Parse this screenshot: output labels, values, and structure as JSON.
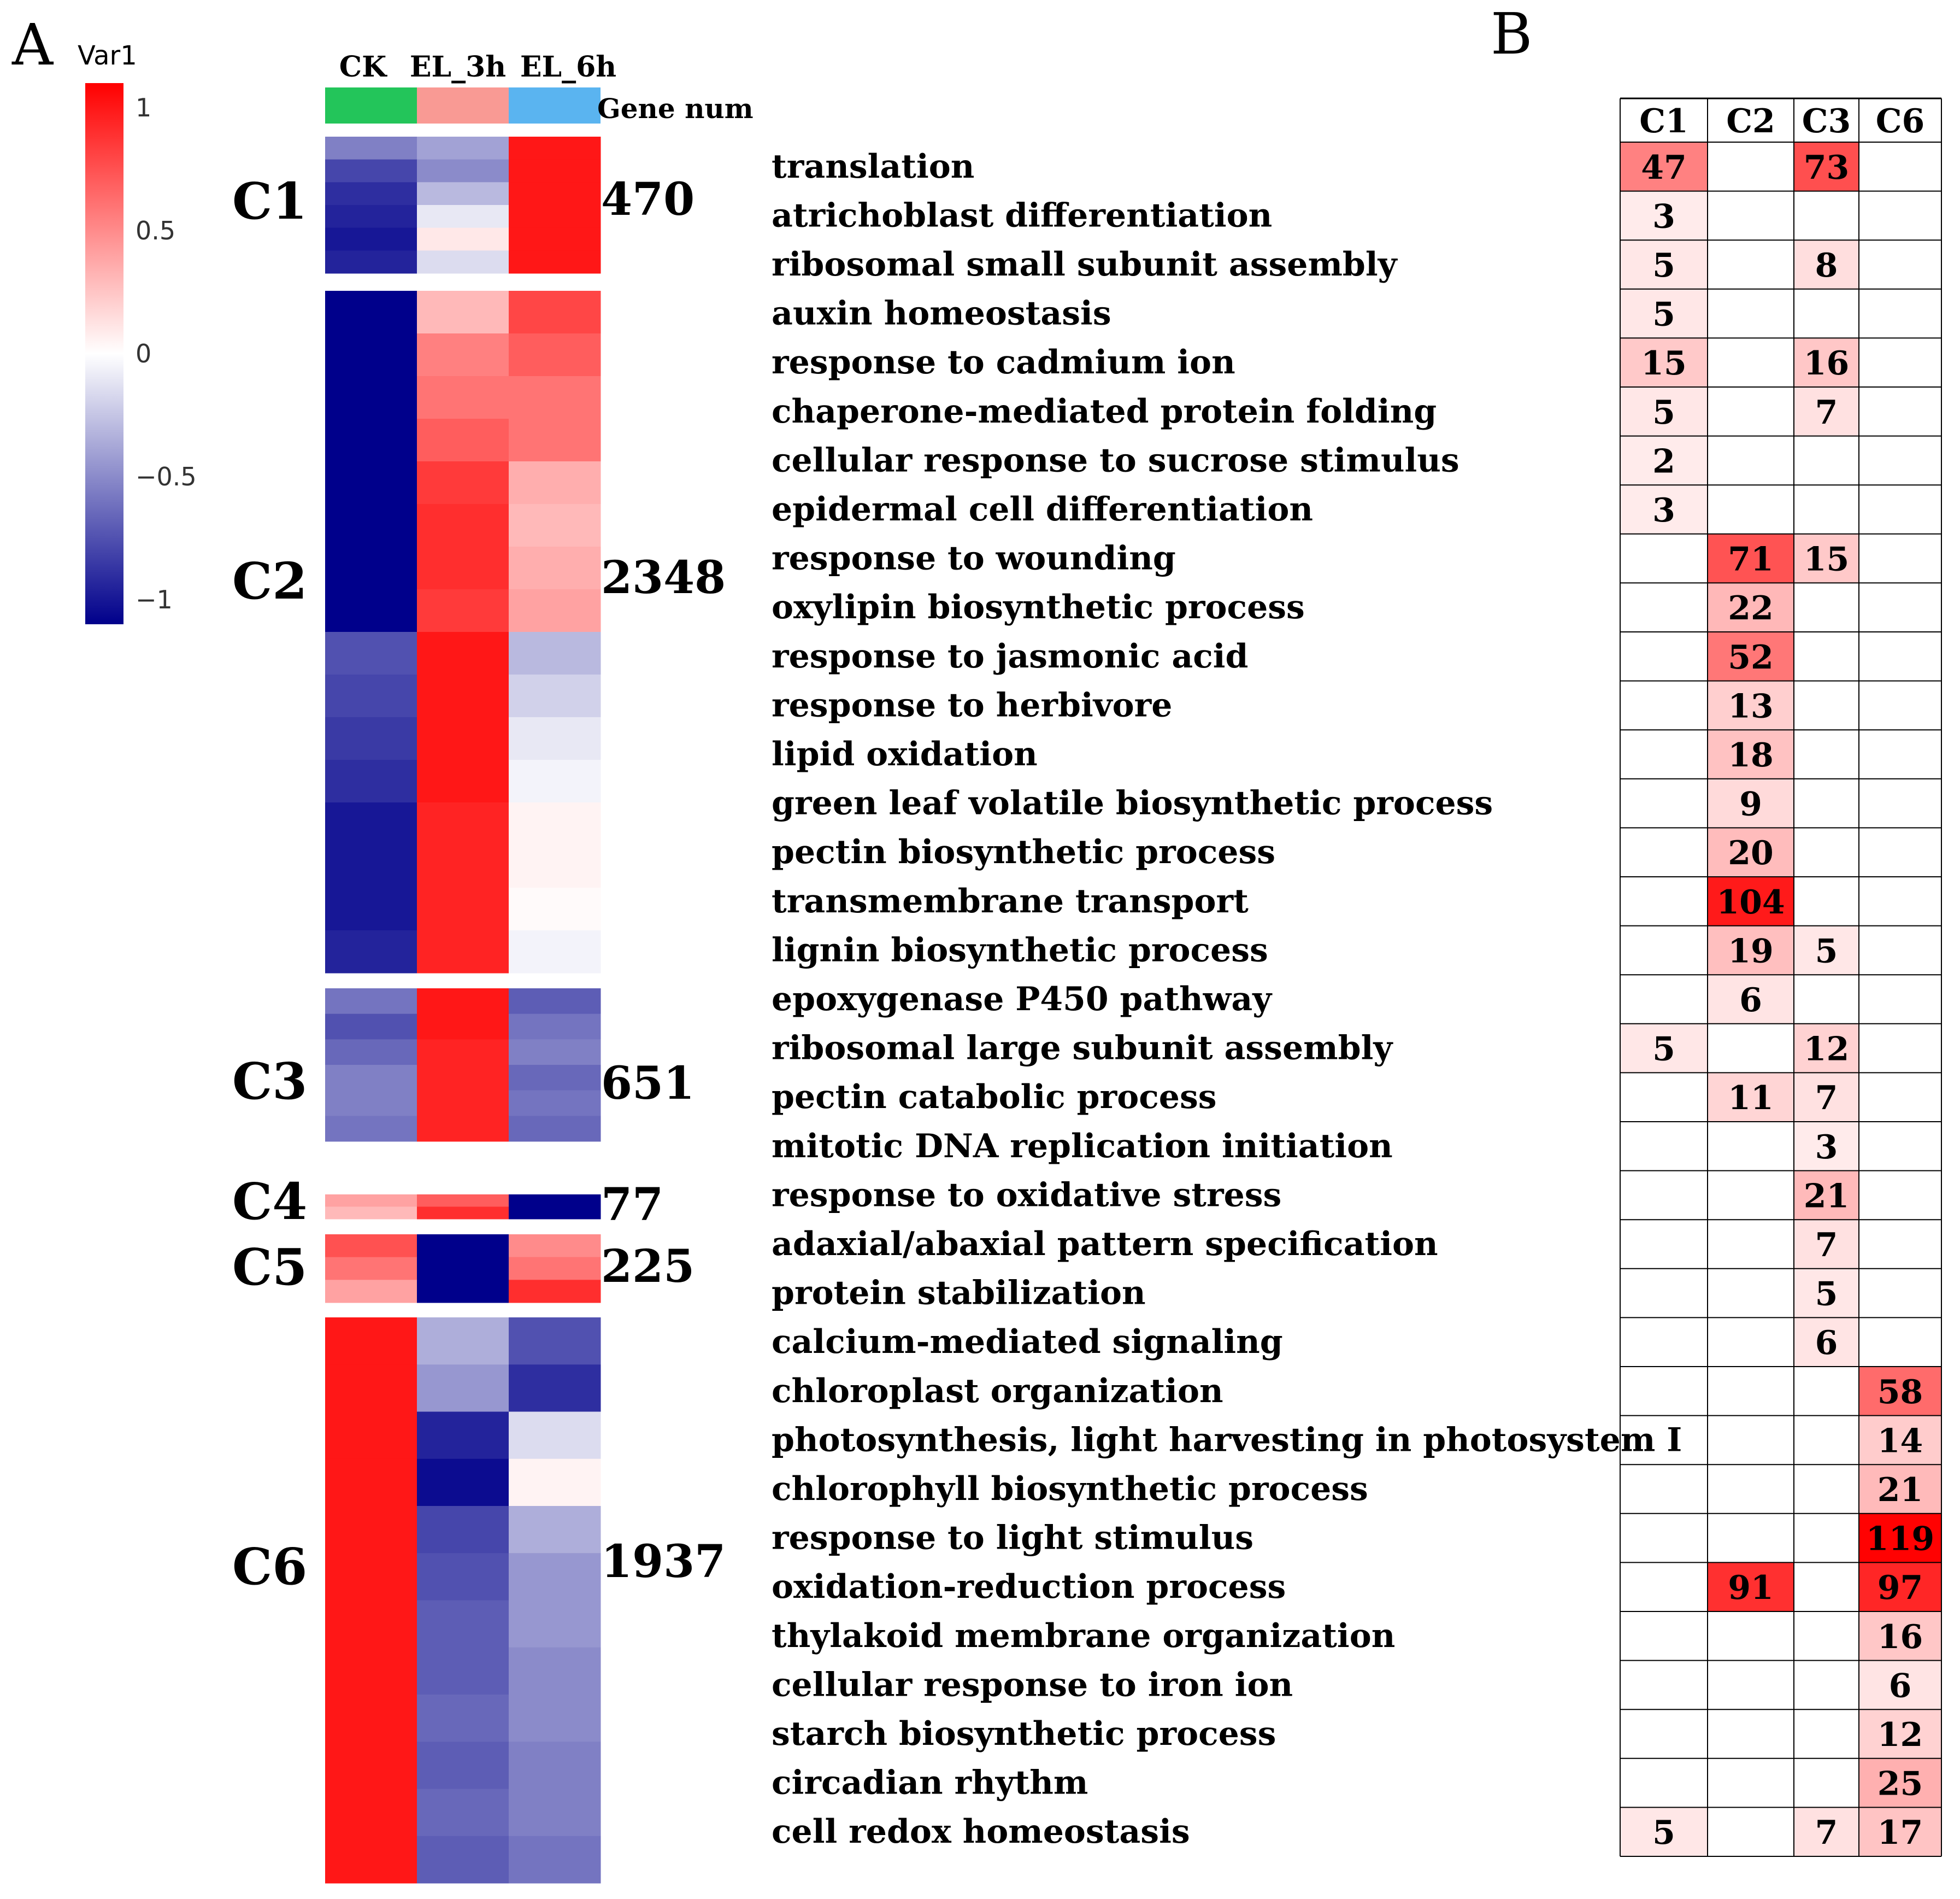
{
  "colors": {
    "max_red": "#ff0000",
    "mid_white": "#ffffff",
    "min_blue": "#00008b",
    "ck_bar": "#23c55a",
    "el3h_bar": "#f99a94",
    "el6h_bar": "#5ab4f0",
    "grid": "#000000"
  },
  "panel_a": {
    "label": "A",
    "legend": {
      "title": "Var1",
      "ticks": [
        {
          "value": 1,
          "label": "1"
        },
        {
          "value": 0.5,
          "label": "0.5"
        },
        {
          "value": 0,
          "label": "0"
        },
        {
          "value": -0.5,
          "label": "−0.5"
        },
        {
          "value": -1,
          "label": "−1"
        }
      ],
      "range": [
        -1.1,
        1.1
      ]
    },
    "columns": [
      "CK",
      "EL_3h",
      "EL_6h"
    ],
    "gene_num_header": "Gene num"
  },
  "panel_b": {
    "label": "B",
    "col_headers": [
      "C1",
      "C2",
      "C3",
      "C6"
    ]
  },
  "chart_data": [
    {
      "type": "heatmap",
      "title": "",
      "xlabel": "",
      "ylabel": "",
      "columns": [
        "CK",
        "EL_3h",
        "EL_6h"
      ],
      "scale": {
        "label": "Var1",
        "min": -1.1,
        "max": 1.1
      },
      "clusters": [
        {
          "name": "C1",
          "gene_num": "470",
          "profile": [
            [
              -0.55,
              -0.4,
              1.0
            ],
            [
              -0.8,
              -0.5,
              1.0
            ],
            [
              -0.9,
              -0.3,
              1.0
            ],
            [
              -0.95,
              -0.1,
              1.0
            ],
            [
              -1.0,
              0.1,
              1.0
            ],
            [
              -0.95,
              -0.15,
              1.0
            ]
          ]
        },
        {
          "name": "C2",
          "gene_num": "2348",
          "profile": [
            [
              -1.1,
              0.3,
              0.8
            ],
            [
              -1.1,
              0.55,
              0.7
            ],
            [
              -1.1,
              0.6,
              0.6
            ],
            [
              -1.1,
              0.7,
              0.6
            ],
            [
              -1.1,
              0.85,
              0.35
            ],
            [
              -1.1,
              0.9,
              0.3
            ],
            [
              -1.1,
              0.9,
              0.35
            ],
            [
              -1.1,
              0.85,
              0.4
            ],
            [
              -0.75,
              1.0,
              -0.3
            ],
            [
              -0.8,
              1.0,
              -0.2
            ],
            [
              -0.85,
              1.0,
              -0.1
            ],
            [
              -0.9,
              1.0,
              -0.05
            ],
            [
              -1.0,
              0.95,
              0.05
            ],
            [
              -1.0,
              0.95,
              0.05
            ],
            [
              -1.0,
              0.95,
              0.02
            ],
            [
              -0.95,
              0.95,
              -0.05
            ]
          ]
        },
        {
          "name": "C3",
          "gene_num": "651",
          "profile": [
            [
              -0.6,
              1.0,
              -0.7
            ],
            [
              -0.75,
              1.0,
              -0.6
            ],
            [
              -0.65,
              0.95,
              -0.55
            ],
            [
              -0.55,
              0.95,
              -0.65
            ],
            [
              -0.55,
              0.95,
              -0.6
            ],
            [
              -0.6,
              0.95,
              -0.65
            ]
          ]
        },
        {
          "name": "C4",
          "gene_num": "77",
          "profile": [
            [
              0.4,
              0.7,
              -1.1
            ],
            [
              0.3,
              0.9,
              -1.1
            ]
          ]
        },
        {
          "name": "C5",
          "gene_num": "225",
          "profile": [
            [
              0.75,
              -1.1,
              0.5
            ],
            [
              0.6,
              -1.1,
              0.6
            ],
            [
              0.4,
              -1.1,
              0.9
            ]
          ]
        },
        {
          "name": "C6",
          "gene_num": "1937",
          "profile": [
            [
              1.0,
              -0.35,
              -0.75
            ],
            [
              1.0,
              -0.45,
              -0.9
            ],
            [
              1.0,
              -0.95,
              -0.15
            ],
            [
              1.0,
              -1.05,
              0.05
            ],
            [
              1.0,
              -0.8,
              -0.35
            ],
            [
              1.0,
              -0.75,
              -0.45
            ],
            [
              1.0,
              -0.7,
              -0.45
            ],
            [
              1.0,
              -0.7,
              -0.5
            ],
            [
              1.0,
              -0.65,
              -0.5
            ],
            [
              1.0,
              -0.7,
              -0.55
            ],
            [
              1.0,
              -0.65,
              -0.55
            ],
            [
              1.0,
              -0.7,
              -0.6
            ]
          ]
        }
      ]
    },
    {
      "type": "table",
      "title": "",
      "columns": [
        "C1",
        "C2",
        "C3",
        "C6"
      ],
      "color_scale": {
        "min": 0,
        "max": 120
      },
      "rows": [
        {
          "term": "translation",
          "values": [
            47,
            null,
            73,
            null
          ]
        },
        {
          "term": "atrichoblast differentiation",
          "values": [
            3,
            null,
            null,
            null
          ]
        },
        {
          "term": "ribosomal small subunit assembly",
          "values": [
            5,
            null,
            8,
            null
          ]
        },
        {
          "term": "auxin homeostasis",
          "values": [
            5,
            null,
            null,
            null
          ]
        },
        {
          "term": "response to cadmium ion",
          "values": [
            15,
            null,
            16,
            null
          ]
        },
        {
          "term": "chaperone-mediated protein folding",
          "values": [
            5,
            null,
            7,
            null
          ]
        },
        {
          "term": "cellular response to sucrose stimulus",
          "values": [
            2,
            null,
            null,
            null
          ]
        },
        {
          "term": "epidermal cell differentiation",
          "values": [
            3,
            null,
            null,
            null
          ]
        },
        {
          "term": "response to wounding",
          "values": [
            null,
            71,
            15,
            null
          ]
        },
        {
          "term": "oxylipin biosynthetic process",
          "values": [
            null,
            22,
            null,
            null
          ]
        },
        {
          "term": "response to jasmonic acid",
          "values": [
            null,
            52,
            null,
            null
          ]
        },
        {
          "term": "response to herbivore",
          "values": [
            null,
            13,
            null,
            null
          ]
        },
        {
          "term": "lipid oxidation",
          "values": [
            null,
            18,
            null,
            null
          ]
        },
        {
          "term": "green leaf volatile biosynthetic process",
          "values": [
            null,
            9,
            null,
            null
          ]
        },
        {
          "term": "pectin biosynthetic process",
          "values": [
            null,
            20,
            null,
            null
          ]
        },
        {
          "term": "transmembrane transport",
          "values": [
            null,
            104,
            null,
            null
          ]
        },
        {
          "term": "lignin biosynthetic process",
          "values": [
            null,
            19,
            5,
            null
          ]
        },
        {
          "term": "epoxygenase P450 pathway",
          "values": [
            null,
            6,
            null,
            null
          ]
        },
        {
          "term": "ribosomal large subunit assembly",
          "values": [
            5,
            null,
            12,
            null
          ]
        },
        {
          "term": "pectin catabolic process",
          "values": [
            null,
            11,
            7,
            null
          ]
        },
        {
          "term": "mitotic DNA replication initiation",
          "values": [
            null,
            null,
            3,
            null
          ]
        },
        {
          "term": "response to oxidative stress",
          "values": [
            null,
            null,
            21,
            null
          ]
        },
        {
          "term": "adaxial/abaxial pattern specification",
          "values": [
            null,
            null,
            7,
            null
          ]
        },
        {
          "term": "protein stabilization",
          "values": [
            null,
            null,
            5,
            null
          ]
        },
        {
          "term": "calcium-mediated signaling",
          "values": [
            null,
            null,
            6,
            null
          ]
        },
        {
          "term": "chloroplast organization",
          "values": [
            null,
            null,
            null,
            58
          ]
        },
        {
          "term": "photosynthesis, light harvesting in photosystem I",
          "values": [
            null,
            null,
            null,
            14
          ]
        },
        {
          "term": "chlorophyll biosynthetic process",
          "values": [
            null,
            null,
            null,
            21
          ]
        },
        {
          "term": "response to light stimulus",
          "values": [
            null,
            null,
            null,
            119
          ]
        },
        {
          "term": "oxidation-reduction process",
          "values": [
            null,
            91,
            null,
            97
          ]
        },
        {
          "term": "thylakoid membrane organization",
          "values": [
            null,
            null,
            null,
            16
          ]
        },
        {
          "term": "cellular response to iron ion",
          "values": [
            null,
            null,
            null,
            6
          ]
        },
        {
          "term": "starch biosynthetic process",
          "values": [
            null,
            null,
            null,
            12
          ]
        },
        {
          "term": "circadian rhythm",
          "values": [
            null,
            null,
            null,
            25
          ]
        },
        {
          "term": "cell redox homeostasis",
          "values": [
            5,
            null,
            7,
            17
          ]
        }
      ]
    }
  ]
}
